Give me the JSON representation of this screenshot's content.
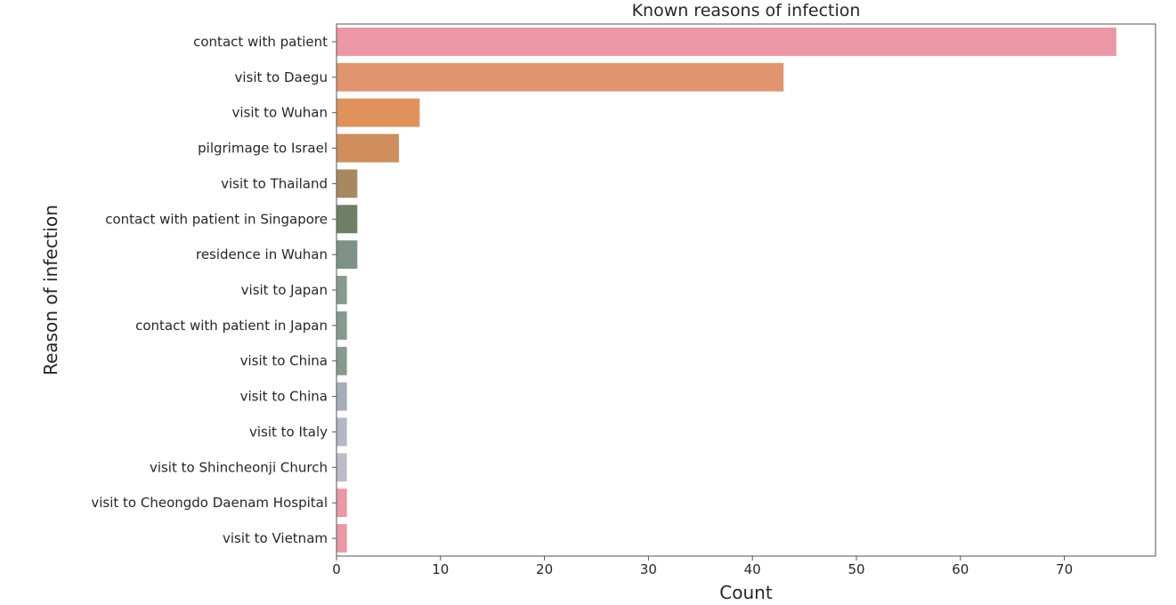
{
  "chart_data": {
    "type": "bar",
    "orientation": "horizontal",
    "title": "Known reasons of infection",
    "xlabel": "Count",
    "ylabel": "Reason of infection",
    "xlim": [
      0,
      80
    ],
    "xticks": [
      0,
      10,
      20,
      30,
      40,
      50,
      60,
      70
    ],
    "grid": false,
    "categories": [
      "contact with patient",
      "visit to Daegu",
      "visit to Wuhan",
      "pilgrimage to Israel",
      "visit to Thailand",
      "contact with patient in Singapore",
      "residence in Wuhan",
      "visit to Japan",
      "contact with patient in Japan",
      "visit to China",
      "visit to China",
      "visit to Italy",
      "visit to Shincheonji Church",
      "visit to Cheongdo Daenam Hospital",
      "visit to Vietnam"
    ],
    "values": [
      75,
      43,
      8,
      6,
      2,
      2,
      2,
      1,
      1,
      1,
      1,
      1,
      1,
      1,
      1
    ],
    "colors": [
      "#ec97a5",
      "#e0956e",
      "#e0925a",
      "#cf8e5c",
      "#a88861",
      "#707f68",
      "#7d9186",
      "#87998f",
      "#87998f",
      "#87998f",
      "#a5adb8",
      "#b3b6c3",
      "#bcbbc7",
      "#ec97a5",
      "#ec97a5"
    ]
  }
}
